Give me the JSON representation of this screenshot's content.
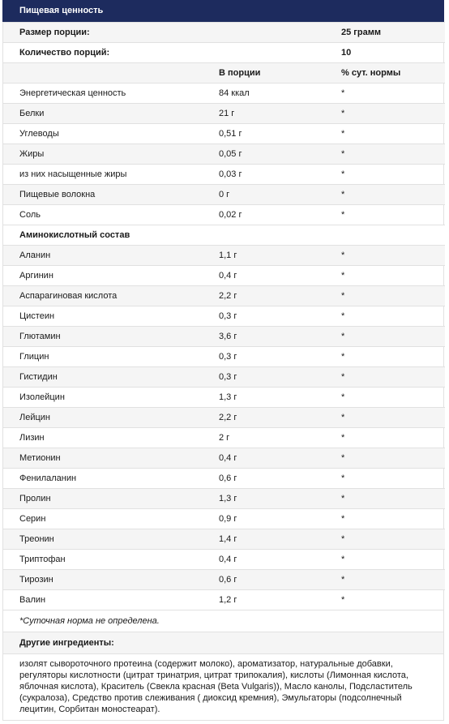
{
  "title": "Пищевая ценность",
  "serving": {
    "label": "Размер порции:",
    "value": "25 грамм"
  },
  "servings_count": {
    "label": "Количество порций:",
    "value": "10"
  },
  "columns": {
    "per_serving": "В порции",
    "daily": "% сут. нормы"
  },
  "nutrition": [
    {
      "name": "Энергетическая ценность",
      "value": "84 ккал",
      "daily": "*"
    },
    {
      "name": "Белки",
      "value": "21 г",
      "daily": "*"
    },
    {
      "name": "Углеводы",
      "value": "0,51 г",
      "daily": "*"
    },
    {
      "name": "Жиры",
      "value": "0,05 г",
      "daily": "*"
    },
    {
      "name": "из них насыщенные жиры",
      "value": "0,03 г",
      "daily": "*"
    },
    {
      "name": "Пищевые волокна",
      "value": "0 г",
      "daily": "*"
    },
    {
      "name": "Соль",
      "value": "0,02 г",
      "daily": "*"
    }
  ],
  "amino_title": "Аминокислотный состав",
  "amino": [
    {
      "name": "Аланин",
      "value": "1,1 г",
      "daily": "*"
    },
    {
      "name": "Аргинин",
      "value": "0,4 г",
      "daily": "*"
    },
    {
      "name": "Аспарагиновая кислота",
      "value": "2,2 г",
      "daily": "*"
    },
    {
      "name": "Цистеин",
      "value": "0,3 г",
      "daily": "*"
    },
    {
      "name": "Глютамин",
      "value": "3,6 г",
      "daily": "*"
    },
    {
      "name": "Глицин",
      "value": "0,3 г",
      "daily": "*"
    },
    {
      "name": "Гистидин",
      "value": "0,3 г",
      "daily": "*"
    },
    {
      "name": "Изолейцин",
      "value": "1,3 г",
      "daily": "*"
    },
    {
      "name": "Лейцин",
      "value": "2,2 г",
      "daily": "*"
    },
    {
      "name": "Лизин",
      "value": "2 г",
      "daily": "*"
    },
    {
      "name": "Метионин",
      "value": "0,4 г",
      "daily": "*"
    },
    {
      "name": "Фенилаланин",
      "value": "0,6 г",
      "daily": "*"
    },
    {
      "name": "Пролин",
      "value": "1,3 г",
      "daily": "*"
    },
    {
      "name": "Серин",
      "value": "0,9 г",
      "daily": "*"
    },
    {
      "name": "Треонин",
      "value": "1,4 г",
      "daily": "*"
    },
    {
      "name": "Триптофан",
      "value": "0,4 г",
      "daily": "*"
    },
    {
      "name": "Тирозин",
      "value": "0,6 г",
      "daily": "*"
    },
    {
      "name": "Валин",
      "value": "1,2 г",
      "daily": "*"
    }
  ],
  "note": "*Суточная норма не определена.",
  "ingredients_title": "Другие ингредиенты:",
  "ingredients_text": "изолят сывороточного протеина (содержит молоко), ароматизатор, натуральные добавки, регуляторы кислотности (цитрат тринатрия, цитрат трипокалия), кислоты (Лимонная кислота, яблочная кислота), Краситель (Свекла красная (Beta Vulgaris)), Масло канолы, Подсластитель (сукралоза), Средство против слеживания ( диоксид кремния), Эмульгаторы (подсолнечный лецитин, Сорбитан моностеарат).",
  "colors": {
    "header_bg": "#1d2b5e",
    "row_shade": "#f5f5f5",
    "border": "#e1e1e1"
  }
}
